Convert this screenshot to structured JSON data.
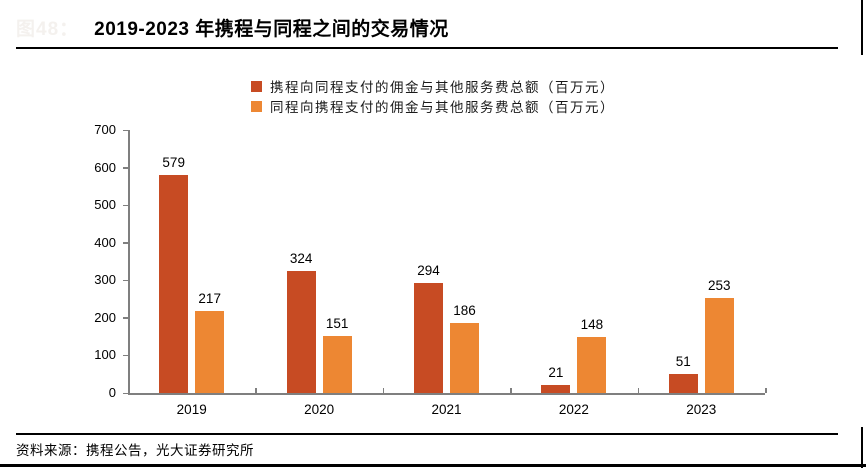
{
  "header": {
    "figure_label_ghost": "图48：",
    "title": "2019-2023 年携程与同程之间的交易情况"
  },
  "chart_data": {
    "type": "bar",
    "title": "2019-2023 年携程与同程之间的交易情况",
    "categories": [
      "2019",
      "2020",
      "2021",
      "2022",
      "2023"
    ],
    "series": [
      {
        "name": "携程向同程支付的佣金与其他服务费总额（百万元）",
        "color": "#C74B23",
        "values": [
          579,
          324,
          294,
          21,
          51
        ]
      },
      {
        "name": "同程向携程支付的佣金与其他服务费总额（百万元）",
        "color": "#ED8733",
        "values": [
          217,
          151,
          186,
          148,
          253
        ]
      }
    ],
    "ylim": [
      0,
      700
    ],
    "ytick_step": 100,
    "grid": false,
    "legend_position": "top",
    "value_labels": true,
    "axis_color": "#7F7F7F"
  },
  "footer": {
    "source": "资料来源：携程公告，光大证券研究所"
  }
}
